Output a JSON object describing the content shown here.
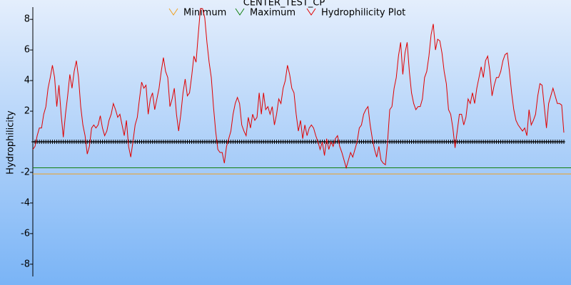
{
  "chart_data": {
    "type": "line",
    "title": "CENTER_TEST_CP",
    "y_label": "Hydrophilicity",
    "ylim": [
      -8.8,
      8.8
    ],
    "yticks": [
      -8,
      -6,
      -4,
      -2,
      2,
      4,
      6,
      8
    ],
    "series": [
      {
        "name": "Minimum",
        "color": "#f0a020",
        "value": -2.1
      },
      {
        "name": "Maximum",
        "color": "#108010",
        "value": -1.7
      },
      {
        "name": "Hydrophilicity Plot",
        "color": "#e00000",
        "values": [
          -0.5,
          -0.3,
          0.4,
          0.9,
          0.9,
          1.8,
          2.3,
          3.5,
          4.2,
          5.0,
          4.2,
          2.3,
          3.7,
          1.8,
          0.3,
          1.8,
          3.0,
          4.4,
          3.5,
          4.6,
          5.3,
          4.2,
          2.3,
          1.1,
          0.4,
          -0.8,
          -0.3,
          0.9,
          1.1,
          0.9,
          1.1,
          1.7,
          0.9,
          0.4,
          0.7,
          1.4,
          1.8,
          2.5,
          2.1,
          1.6,
          1.8,
          1.1,
          0.4,
          1.4,
          -0.3,
          -1.0,
          0.0,
          1.1,
          1.6,
          2.8,
          3.9,
          3.5,
          3.7,
          1.8,
          2.8,
          3.2,
          2.1,
          2.8,
          3.5,
          4.6,
          5.5,
          4.6,
          4.2,
          2.3,
          2.8,
          3.5,
          1.8,
          0.7,
          1.8,
          3.2,
          4.1,
          3.0,
          3.2,
          4.3,
          5.6,
          5.2,
          7.0,
          8.7,
          8.7,
          8.1,
          6.5,
          5.2,
          4.2,
          2.3,
          0.7,
          -0.5,
          -0.7,
          -0.7,
          -1.4,
          -0.3,
          0.2,
          0.7,
          1.8,
          2.5,
          2.9,
          2.5,
          1.1,
          0.7,
          0.4,
          1.6,
          0.9,
          1.8,
          1.4,
          1.6,
          3.2,
          1.8,
          3.2,
          2.1,
          2.3,
          1.8,
          2.3,
          1.1,
          1.8,
          2.8,
          2.5,
          3.5,
          4.0,
          5.0,
          4.4,
          3.5,
          3.2,
          1.8,
          0.7,
          1.4,
          0.2,
          1.1,
          0.4,
          0.9,
          1.1,
          0.9,
          0.4,
          0.0,
          -0.5,
          0.0,
          -0.9,
          0.2,
          -0.5,
          0.0,
          -0.3,
          0.2,
          0.4,
          -0.3,
          -0.7,
          -1.2,
          -1.7,
          -1.2,
          -0.7,
          -1.0,
          -0.5,
          0.0,
          0.9,
          1.1,
          1.8,
          2.1,
          2.3,
          1.1,
          0.2,
          -0.5,
          -1.0,
          -0.3,
          -1.2,
          -1.4,
          -1.5,
          0.0,
          2.1,
          2.3,
          3.5,
          4.2,
          5.6,
          6.5,
          4.4,
          5.8,
          6.5,
          4.6,
          3.2,
          2.5,
          2.1,
          2.3,
          2.3,
          2.8,
          4.2,
          4.6,
          5.6,
          7.0,
          7.7,
          6.0,
          6.7,
          6.6,
          5.8,
          4.6,
          3.8,
          2.1,
          1.8,
          0.9,
          -0.4,
          0.7,
          1.8,
          1.8,
          1.1,
          1.6,
          2.8,
          2.5,
          3.2,
          2.5,
          3.5,
          4.2,
          4.9,
          4.2,
          5.3,
          5.6,
          4.6,
          3.0,
          3.7,
          4.2,
          4.2,
          4.6,
          5.3,
          5.7,
          5.8,
          4.6,
          3.2,
          2.1,
          1.4,
          1.1,
          0.9,
          0.7,
          0.9,
          0.4,
          2.1,
          1.1,
          1.4,
          1.8,
          3.0,
          3.8,
          3.7,
          2.3,
          0.9,
          2.5,
          3.0,
          3.5,
          3.0,
          2.5,
          2.5,
          2.4,
          0.6
        ]
      }
    ]
  }
}
